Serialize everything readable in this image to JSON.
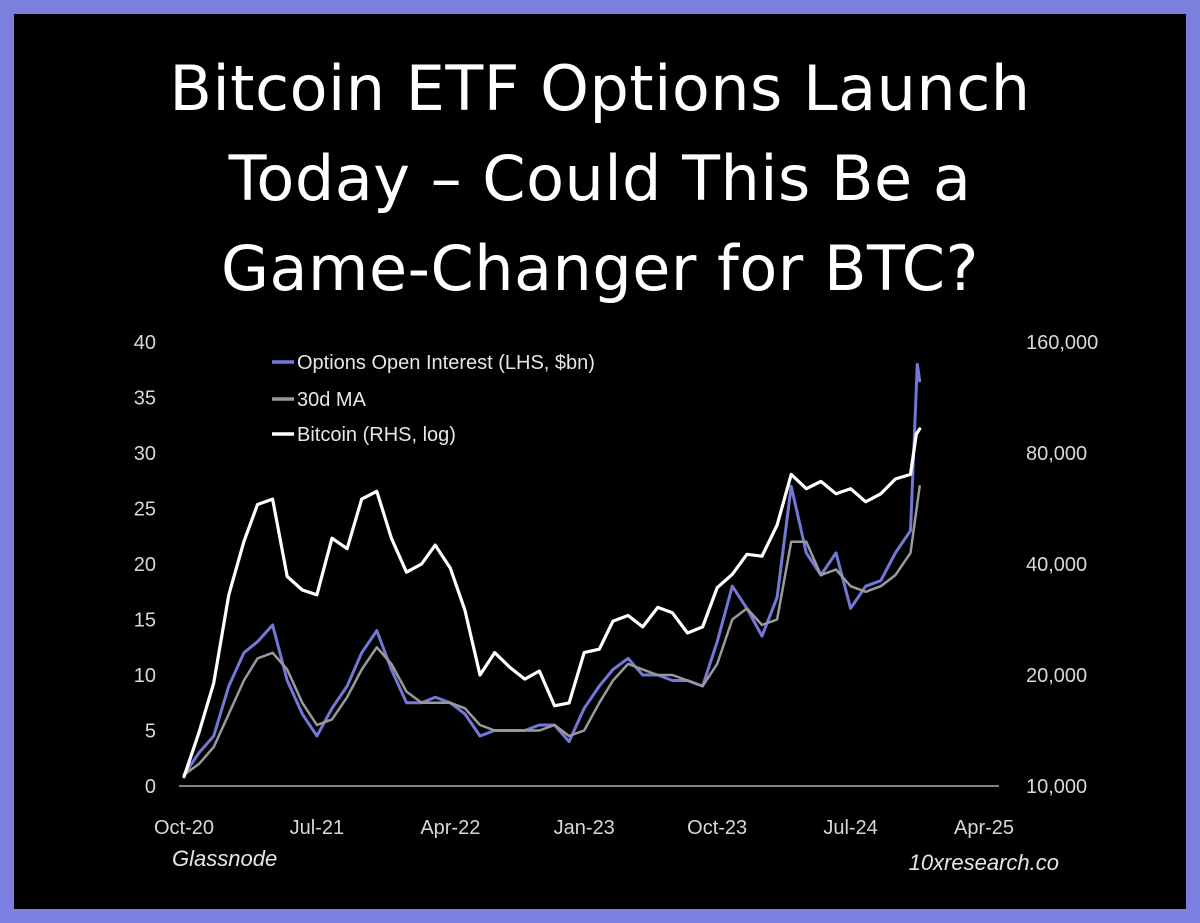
{
  "title_lines": [
    "Bitcoin ETF Options Launch",
    "Today – Could This Be a",
    "Game-Changer for BTC?"
  ],
  "source_left": "Glassnode",
  "source_right": "10xresearch.co",
  "colors": {
    "frame": "#7b7fe0",
    "background": "#000000",
    "oi": "#7377d6",
    "ma": "#9a9a9a",
    "btc": "#ffffff"
  },
  "chart_data": {
    "type": "line",
    "x_tick_labels": [
      "Oct-20",
      "Jul-21",
      "Apr-22",
      "Jan-23",
      "Oct-23",
      "Jul-24",
      "Apr-25"
    ],
    "x_range": [
      "2020-10",
      "2025-04"
    ],
    "y_left": {
      "ticks": [
        "0",
        "5",
        "10",
        "15",
        "20",
        "25",
        "30",
        "35",
        "40"
      ],
      "range": [
        0,
        40
      ]
    },
    "y_right": {
      "ticks": [
        "10,000",
        "20,000",
        "40,000",
        "80,000",
        "160,000"
      ],
      "range": [
        10000,
        160000
      ],
      "scale": "log"
    },
    "grid": false,
    "legend_position": "top-left",
    "series": [
      {
        "name": "Options Open Interest (LHS, $bn)",
        "axis": "left",
        "points": [
          [
            "2020-10-01",
            1.0
          ],
          [
            "2020-11-01",
            3.0
          ],
          [
            "2020-12-01",
            4.5
          ],
          [
            "2021-01-01",
            9.0
          ],
          [
            "2021-02-01",
            12.0
          ],
          [
            "2021-03-01",
            13.0
          ],
          [
            "2021-04-01",
            14.5
          ],
          [
            "2021-05-01",
            9.5
          ],
          [
            "2021-06-01",
            6.5
          ],
          [
            "2021-07-01",
            4.5
          ],
          [
            "2021-08-01",
            7.0
          ],
          [
            "2021-09-01",
            9.0
          ],
          [
            "2021-10-01",
            12.0
          ],
          [
            "2021-11-01",
            14.0
          ],
          [
            "2021-12-01",
            10.5
          ],
          [
            "2022-01-01",
            7.5
          ],
          [
            "2022-02-01",
            7.5
          ],
          [
            "2022-03-01",
            8.0
          ],
          [
            "2022-04-01",
            7.5
          ],
          [
            "2022-05-01",
            6.5
          ],
          [
            "2022-06-01",
            4.5
          ],
          [
            "2022-07-01",
            5.0
          ],
          [
            "2022-08-01",
            5.0
          ],
          [
            "2022-09-01",
            5.0
          ],
          [
            "2022-10-01",
            5.5
          ],
          [
            "2022-11-01",
            5.5
          ],
          [
            "2022-12-01",
            4.0
          ],
          [
            "2023-01-01",
            7.0
          ],
          [
            "2023-02-01",
            9.0
          ],
          [
            "2023-03-01",
            10.5
          ],
          [
            "2023-04-01",
            11.5
          ],
          [
            "2023-05-01",
            10.0
          ],
          [
            "2023-06-01",
            10.0
          ],
          [
            "2023-07-01",
            9.5
          ],
          [
            "2023-08-01",
            9.5
          ],
          [
            "2023-09-01",
            9.0
          ],
          [
            "2023-10-01",
            13.0
          ],
          [
            "2023-11-01",
            18.0
          ],
          [
            "2023-12-01",
            16.0
          ],
          [
            "2024-01-01",
            13.5
          ],
          [
            "2024-02-01",
            17.0
          ],
          [
            "2024-03-01",
            27.0
          ],
          [
            "2024-04-01",
            21.0
          ],
          [
            "2024-05-01",
            19.0
          ],
          [
            "2024-06-01",
            21.0
          ],
          [
            "2024-07-01",
            16.0
          ],
          [
            "2024-08-01",
            18.0
          ],
          [
            "2024-09-01",
            18.5
          ],
          [
            "2024-10-01",
            21.0
          ],
          [
            "2024-11-01",
            23.0
          ],
          [
            "2024-11-15",
            38.0
          ],
          [
            "2024-11-20",
            36.5
          ]
        ]
      },
      {
        "name": "30d MA",
        "axis": "left",
        "points": [
          [
            "2020-10-01",
            1.0
          ],
          [
            "2020-11-01",
            2.0
          ],
          [
            "2020-12-01",
            3.5
          ],
          [
            "2021-01-01",
            6.5
          ],
          [
            "2021-02-01",
            9.5
          ],
          [
            "2021-03-01",
            11.5
          ],
          [
            "2021-04-01",
            12.0
          ],
          [
            "2021-05-01",
            10.5
          ],
          [
            "2021-06-01",
            7.5
          ],
          [
            "2021-07-01",
            5.5
          ],
          [
            "2021-08-01",
            6.0
          ],
          [
            "2021-09-01",
            8.0
          ],
          [
            "2021-10-01",
            10.5
          ],
          [
            "2021-11-01",
            12.5
          ],
          [
            "2021-12-01",
            11.0
          ],
          [
            "2022-01-01",
            8.5
          ],
          [
            "2022-02-01",
            7.5
          ],
          [
            "2022-03-01",
            7.5
          ],
          [
            "2022-04-01",
            7.5
          ],
          [
            "2022-05-01",
            7.0
          ],
          [
            "2022-06-01",
            5.5
          ],
          [
            "2022-07-01",
            5.0
          ],
          [
            "2022-08-01",
            5.0
          ],
          [
            "2022-09-01",
            5.0
          ],
          [
            "2022-10-01",
            5.0
          ],
          [
            "2022-11-01",
            5.5
          ],
          [
            "2022-12-01",
            4.5
          ],
          [
            "2023-01-01",
            5.0
          ],
          [
            "2023-02-01",
            7.5
          ],
          [
            "2023-03-01",
            9.5
          ],
          [
            "2023-04-01",
            11.0
          ],
          [
            "2023-05-01",
            10.5
          ],
          [
            "2023-06-01",
            10.0
          ],
          [
            "2023-07-01",
            10.0
          ],
          [
            "2023-08-01",
            9.5
          ],
          [
            "2023-09-01",
            9.0
          ],
          [
            "2023-10-01",
            11.0
          ],
          [
            "2023-11-01",
            15.0
          ],
          [
            "2023-12-01",
            16.0
          ],
          [
            "2024-01-01",
            14.5
          ],
          [
            "2024-02-01",
            15.0
          ],
          [
            "2024-03-01",
            22.0
          ],
          [
            "2024-04-01",
            22.0
          ],
          [
            "2024-05-01",
            19.0
          ],
          [
            "2024-06-01",
            19.5
          ],
          [
            "2024-07-01",
            18.0
          ],
          [
            "2024-08-01",
            17.5
          ],
          [
            "2024-09-01",
            18.0
          ],
          [
            "2024-10-01",
            19.0
          ],
          [
            "2024-11-01",
            21.0
          ],
          [
            "2024-11-20",
            27.0
          ]
        ]
      },
      {
        "name": "Bitcoin (RHS, log)",
        "axis": "right",
        "points": [
          [
            "2020-10-01",
            10600
          ],
          [
            "2020-11-01",
            14000
          ],
          [
            "2020-12-01",
            19000
          ],
          [
            "2021-01-01",
            33000
          ],
          [
            "2021-02-01",
            46000
          ],
          [
            "2021-03-01",
            58000
          ],
          [
            "2021-04-01",
            60000
          ],
          [
            "2021-05-01",
            37000
          ],
          [
            "2021-06-01",
            34000
          ],
          [
            "2021-07-01",
            33000
          ],
          [
            "2021-08-01",
            47000
          ],
          [
            "2021-09-01",
            44000
          ],
          [
            "2021-10-01",
            60000
          ],
          [
            "2021-11-01",
            63000
          ],
          [
            "2021-12-01",
            47000
          ],
          [
            "2022-01-01",
            38000
          ],
          [
            "2022-02-01",
            40000
          ],
          [
            "2022-03-01",
            45000
          ],
          [
            "2022-04-01",
            39000
          ],
          [
            "2022-05-01",
            30000
          ],
          [
            "2022-06-01",
            20000
          ],
          [
            "2022-07-01",
            23000
          ],
          [
            "2022-08-01",
            21000
          ],
          [
            "2022-09-01",
            19500
          ],
          [
            "2022-10-01",
            20500
          ],
          [
            "2022-11-01",
            16500
          ],
          [
            "2022-12-01",
            16800
          ],
          [
            "2023-01-01",
            23000
          ],
          [
            "2023-02-01",
            23500
          ],
          [
            "2023-03-01",
            28000
          ],
          [
            "2023-04-01",
            29000
          ],
          [
            "2023-05-01",
            27000
          ],
          [
            "2023-06-01",
            30500
          ],
          [
            "2023-07-01",
            29500
          ],
          [
            "2023-08-01",
            26000
          ],
          [
            "2023-09-01",
            27000
          ],
          [
            "2023-10-01",
            34500
          ],
          [
            "2023-11-01",
            37500
          ],
          [
            "2023-12-01",
            42500
          ],
          [
            "2024-01-01",
            42000
          ],
          [
            "2024-02-01",
            51000
          ],
          [
            "2024-03-01",
            70000
          ],
          [
            "2024-04-01",
            64000
          ],
          [
            "2024-05-01",
            67000
          ],
          [
            "2024-06-01",
            62000
          ],
          [
            "2024-07-01",
            64000
          ],
          [
            "2024-08-01",
            59000
          ],
          [
            "2024-09-01",
            62000
          ],
          [
            "2024-10-01",
            68000
          ],
          [
            "2024-11-01",
            70000
          ],
          [
            "2024-11-13",
            90000
          ],
          [
            "2024-11-20",
            93000
          ]
        ]
      }
    ]
  }
}
